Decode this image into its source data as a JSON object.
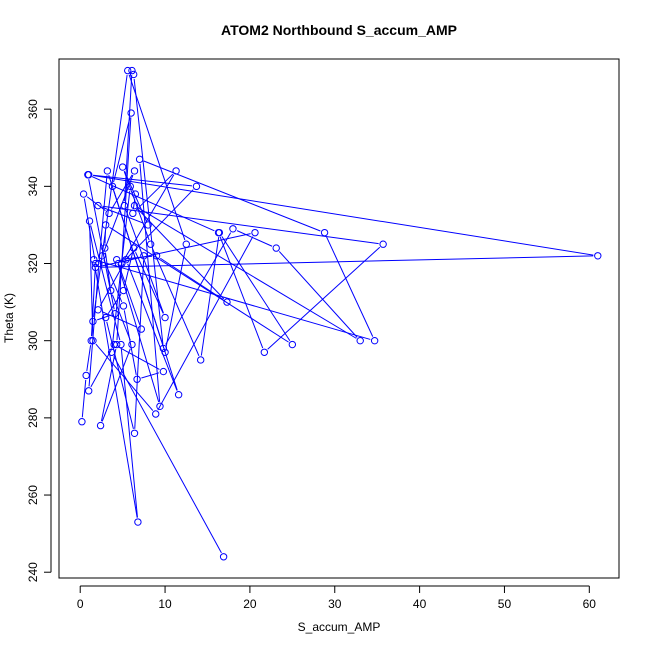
{
  "chart_data": {
    "type": "scatter",
    "title": "ATOM2 Northbound S_accum_AMP",
    "xlabel": "S_accum_AMP",
    "ylabel": "Theta (K)",
    "xlim": [
      -2.5,
      63.5
    ],
    "ylim": [
      238.5,
      373
    ],
    "xticks": [
      0,
      10,
      20,
      30,
      40,
      50,
      60
    ],
    "yticks": [
      240,
      260,
      280,
      300,
      320,
      340,
      360
    ],
    "grid": false,
    "legend": "none",
    "series": [
      {
        "color": "#0000ff",
        "marker": "open-circle",
        "connected": true,
        "points": [
          [
            0.2,
            279
          ],
          [
            0.7,
            291
          ],
          [
            1.3,
            300
          ],
          [
            1.8,
            320
          ],
          [
            0.4,
            338
          ],
          [
            3.4,
            333
          ],
          [
            6.4,
            344
          ],
          [
            2.6,
            322
          ],
          [
            5.1,
            309
          ],
          [
            6.7,
            290
          ],
          [
            9.8,
            292
          ],
          [
            4.0,
            299
          ],
          [
            1.0,
            287
          ],
          [
            2.2,
            320
          ],
          [
            3.2,
            344
          ],
          [
            10.0,
            297
          ],
          [
            12.5,
            325
          ],
          [
            5.6,
            370
          ],
          [
            1.5,
            305
          ],
          [
            4.1,
            307
          ],
          [
            0.9,
            343
          ],
          [
            16.3,
            328
          ],
          [
            21.7,
            297
          ],
          [
            35.7,
            325
          ],
          [
            2.1,
            335
          ],
          [
            8.0,
            330
          ],
          [
            5.0,
            345
          ],
          [
            8.3,
            325
          ],
          [
            14.2,
            295
          ],
          [
            16.4,
            328
          ],
          [
            25.0,
            299
          ],
          [
            3.0,
            330
          ],
          [
            2.9,
            324
          ],
          [
            3.6,
            313
          ],
          [
            6.1,
            299
          ],
          [
            2.4,
            278
          ],
          [
            4.3,
            299
          ],
          [
            6.0,
            359
          ],
          [
            3.8,
            340
          ],
          [
            11.6,
            286
          ],
          [
            5.4,
            321
          ],
          [
            2.1,
            308
          ],
          [
            7.2,
            303
          ],
          [
            4.5,
            320
          ],
          [
            7.5,
            322
          ],
          [
            6.4,
            276
          ],
          [
            3.0,
            306
          ],
          [
            5.1,
            313
          ],
          [
            6.3,
            324
          ],
          [
            10.0,
            306
          ],
          [
            5.2,
            335
          ],
          [
            6.1,
            370
          ],
          [
            6.3,
            369
          ],
          [
            9.8,
            298
          ],
          [
            18.0,
            329
          ],
          [
            23.1,
            324
          ],
          [
            33.0,
            300
          ],
          [
            6.4,
            335
          ],
          [
            17.3,
            310
          ],
          [
            9.0,
            322
          ],
          [
            4.3,
            321
          ],
          [
            9.4,
            283
          ],
          [
            7.0,
            347
          ],
          [
            28.8,
            328
          ],
          [
            34.7,
            300
          ],
          [
            1.6,
            321
          ],
          [
            6.8,
            253
          ],
          [
            4.8,
            299
          ],
          [
            1.1,
            331
          ],
          [
            1.5,
            300
          ],
          [
            8.9,
            281
          ],
          [
            20.6,
            328
          ],
          [
            1.8,
            319
          ],
          [
            61.0,
            322
          ],
          [
            1.0,
            343
          ],
          [
            13.7,
            340
          ],
          [
            4.9,
            320
          ],
          [
            11.3,
            344
          ],
          [
            6.2,
            333
          ],
          [
            6.5,
            338
          ],
          [
            5.9,
            340
          ],
          [
            3.7,
            297
          ],
          [
            16.9,
            244
          ]
        ]
      }
    ]
  }
}
